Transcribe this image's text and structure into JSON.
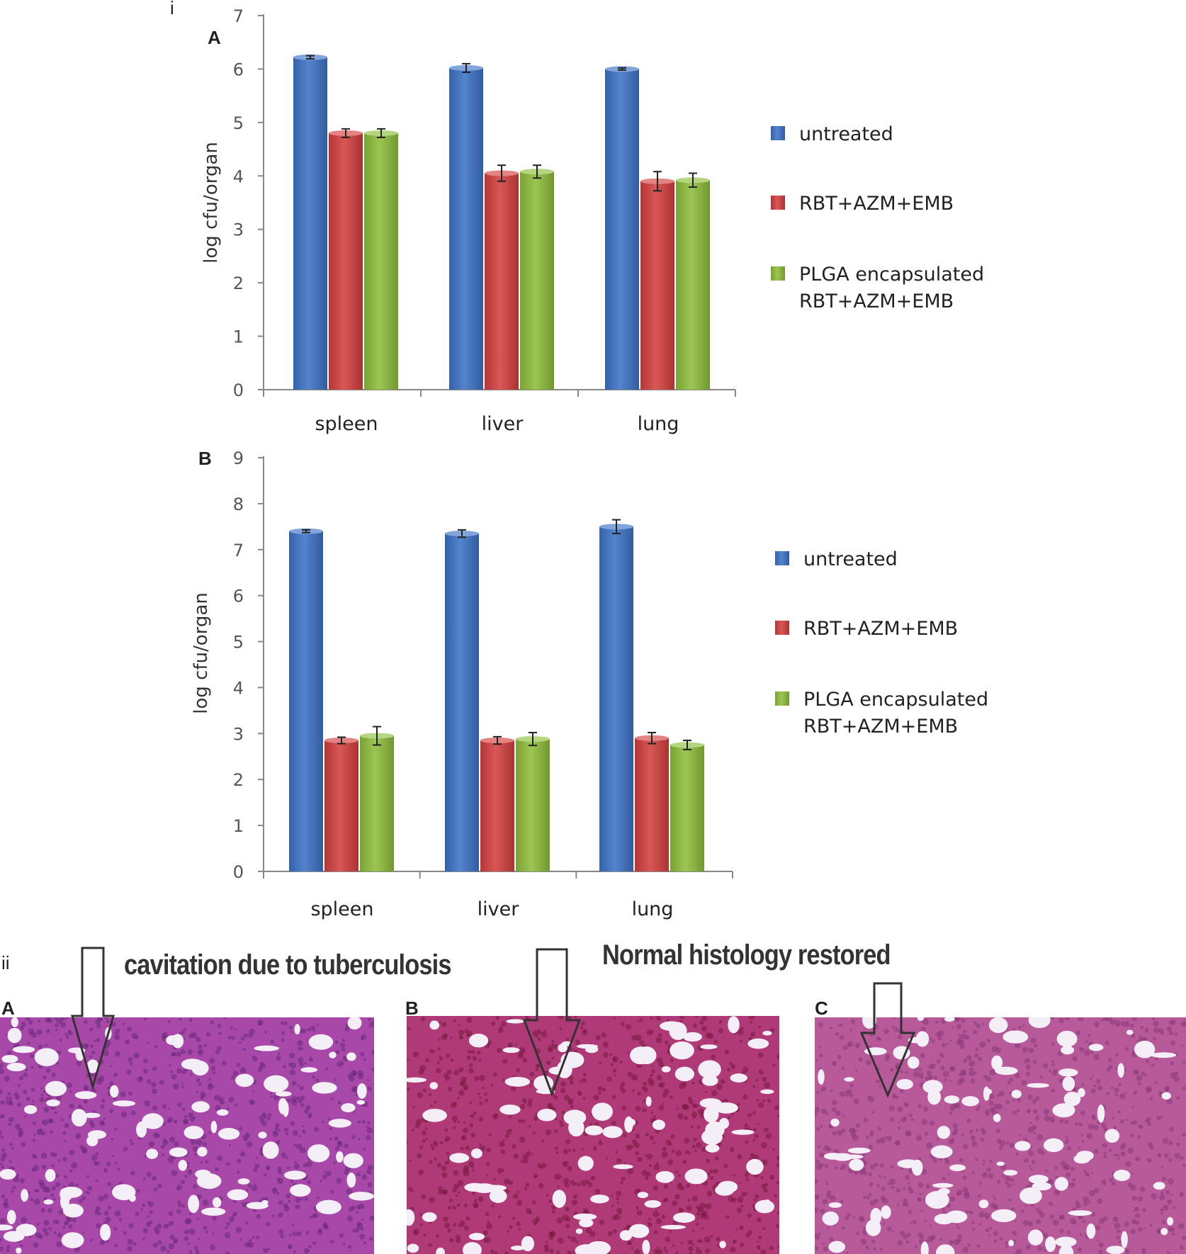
{
  "figure": {
    "section_i": "i",
    "section_ii": "ii"
  },
  "chart_data": [
    {
      "type": "bar",
      "panel": "A",
      "categories": [
        "spleen",
        "liver",
        "lung"
      ],
      "ylabel": "log cfu/organ",
      "ylim": [
        0,
        7
      ],
      "yticks": [
        0,
        1,
        2,
        3,
        4,
        5,
        6,
        7
      ],
      "legend_position": "right",
      "series": [
        {
          "name": "untreated",
          "legend_lines": [
            "untreated"
          ],
          "color": "#3d73c7",
          "values": [
            6.22,
            6.02,
            6.0
          ],
          "errors": [
            0.03,
            0.08,
            0.02
          ]
        },
        {
          "name": "RBT+AZM+EMB",
          "legend_lines": [
            "RBT+AZM+EMB"
          ],
          "color": "#d4403f",
          "values": [
            4.8,
            4.05,
            3.9
          ],
          "errors": [
            0.08,
            0.15,
            0.18
          ]
        },
        {
          "name": "PLGA encapsulated RBT+AZM+EMB",
          "legend_lines": [
            "PLGA encapsulated",
            "RBT+AZM+EMB"
          ],
          "color": "#8fbe3c",
          "values": [
            4.8,
            4.08,
            3.92
          ],
          "errors": [
            0.08,
            0.12,
            0.13
          ]
        }
      ]
    },
    {
      "type": "bar",
      "panel": "B",
      "categories": [
        "spleen",
        "liver",
        "lung"
      ],
      "ylabel": "log cfu/organ",
      "ylim": [
        0,
        9
      ],
      "yticks": [
        0,
        1,
        2,
        3,
        4,
        5,
        6,
        7,
        8,
        9
      ],
      "legend_position": "right",
      "series": [
        {
          "name": "untreated",
          "legend_lines": [
            "untreated"
          ],
          "color": "#3d73c7",
          "values": [
            7.4,
            7.35,
            7.5
          ],
          "errors": [
            0.03,
            0.08,
            0.15
          ]
        },
        {
          "name": "RBT+AZM+EMB",
          "legend_lines": [
            "RBT+AZM+EMB"
          ],
          "color": "#d4403f",
          "values": [
            2.85,
            2.85,
            2.9
          ],
          "errors": [
            0.07,
            0.08,
            0.12
          ]
        },
        {
          "name": "PLGA encapsulated RBT+AZM+EMB",
          "legend_lines": [
            "PLGA encapsulated",
            "RBT+AZM+EMB"
          ],
          "color": "#8fbe3c",
          "values": [
            2.95,
            2.88,
            2.75
          ],
          "errors": [
            0.2,
            0.14,
            0.1
          ]
        }
      ]
    }
  ],
  "histology": {
    "caption_left": "cavitation due to tuberculosis",
    "caption_right": "Normal histology restored",
    "panels": [
      {
        "label": "A",
        "tissue_color": "#a848a8",
        "dark_color": "#6a2a7a"
      },
      {
        "label": "B",
        "tissue_color": "#b03a78",
        "dark_color": "#7a1a40"
      },
      {
        "label": "C",
        "tissue_color": "#b85a9a",
        "dark_color": "#8a3a78"
      }
    ]
  }
}
